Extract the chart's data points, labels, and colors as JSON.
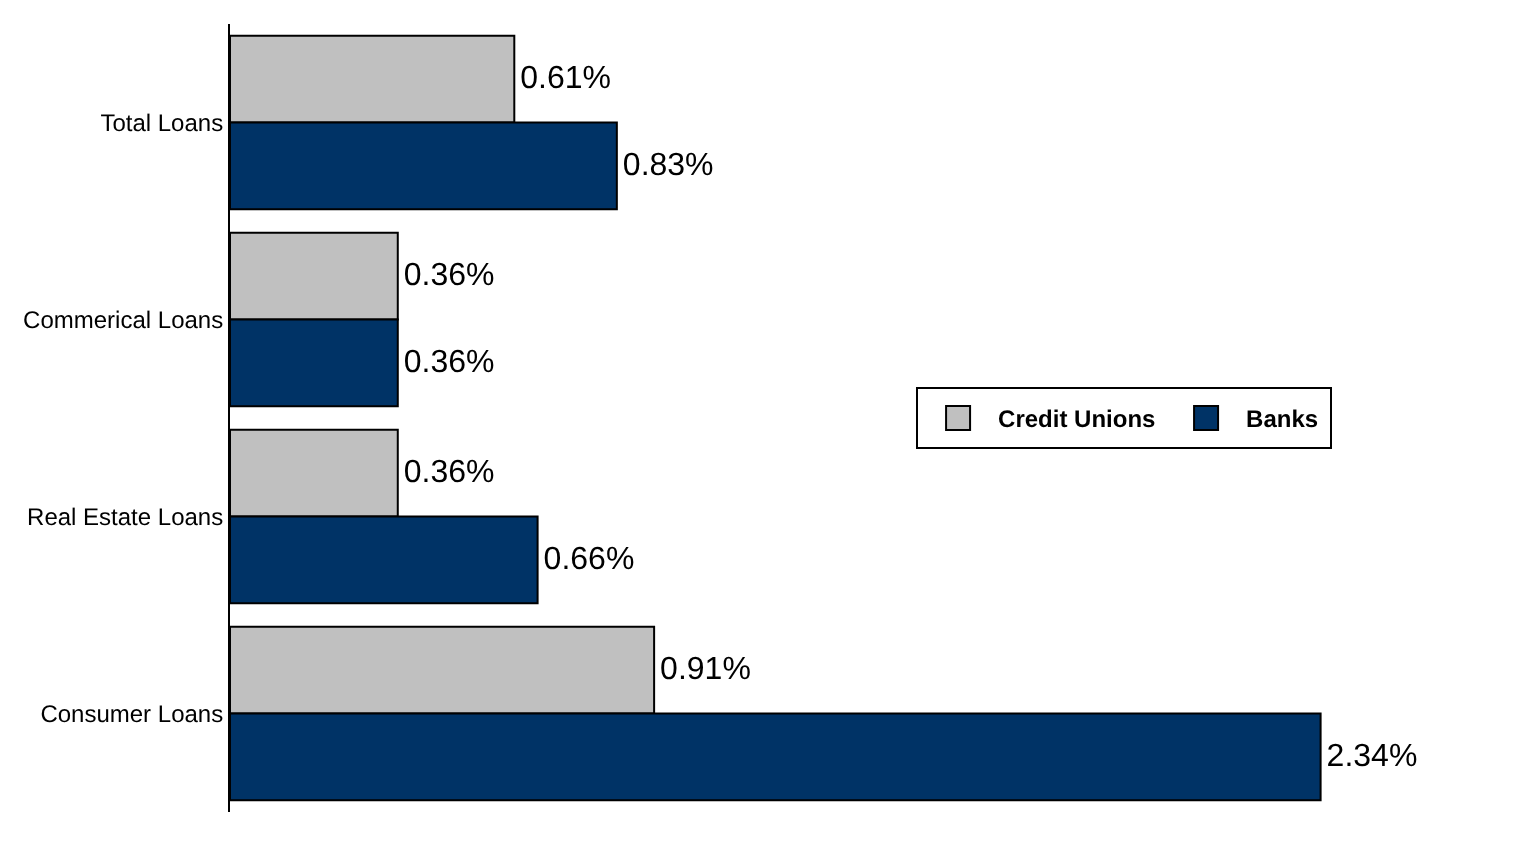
{
  "chart_data": {
    "type": "bar",
    "orientation": "horizontal",
    "categories": [
      "Total Loans",
      "Commerical Loans",
      "Real Estate Loans",
      "Consumer Loans"
    ],
    "series": [
      {
        "name": "Credit Unions",
        "color": "#c0c0c0",
        "values": [
          0.61,
          0.36,
          0.36,
          0.91
        ],
        "value_labels": [
          "0.61%",
          "0.36%",
          "0.36%",
          "0.91%"
        ]
      },
      {
        "name": "Banks",
        "color": "#003366",
        "values": [
          0.83,
          0.36,
          0.66,
          2.34
        ],
        "value_labels": [
          "0.83%",
          "0.36%",
          "0.66%",
          "2.34%"
        ]
      }
    ],
    "legend": "right"
  }
}
